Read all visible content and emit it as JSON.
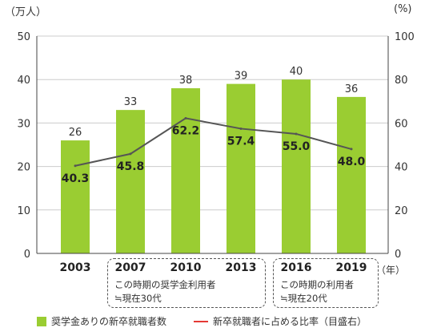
{
  "chart_data": {
    "type": "bar",
    "categories": [
      "2003",
      "2007",
      "2010",
      "2013",
      "2016",
      "2019"
    ],
    "series": [
      {
        "name": "奨学金ありの新卒就職者数",
        "values": [
          26,
          33,
          38,
          39,
          40,
          36
        ],
        "axis": "left",
        "kind": "bar",
        "color": "#9ACD32"
      },
      {
        "name": "新卒就職者に占める比率（目盛右）",
        "values": [
          40.3,
          45.8,
          62.2,
          57.4,
          55.0,
          48.0
        ],
        "axis": "right",
        "kind": "line",
        "color": "#e53935",
        "drawn_color": "#555555"
      }
    ],
    "bar_labels": [
      "26",
      "33",
      "38",
      "39",
      "40",
      "36"
    ],
    "line_labels": [
      "40.3",
      "45.8",
      "62.2",
      "57.4",
      "55.0",
      "48.0"
    ],
    "ylim_left": [
      0,
      50
    ],
    "yticks_left": [
      "0",
      "10",
      "20",
      "30",
      "40",
      "50"
    ],
    "ylim_right": [
      0,
      100
    ],
    "yticks_right": [
      "0",
      "20",
      "40",
      "60",
      "80",
      "100"
    ],
    "ylabel_left": "（万人）",
    "ylabel_right": "(%)",
    "xlabel": "（年）",
    "grid": true,
    "legend_position": "bottom"
  },
  "annotations": [
    {
      "line1": "この時期の奨学金利用者",
      "line2": "≒現在30代"
    },
    {
      "line1": "この時期の利用者",
      "line2": "≒現在20代"
    }
  ],
  "legend": {
    "bar_label": "奨学金ありの新卒就職者数",
    "line_label": "新卒就職者に占める比率（目盛右）"
  }
}
